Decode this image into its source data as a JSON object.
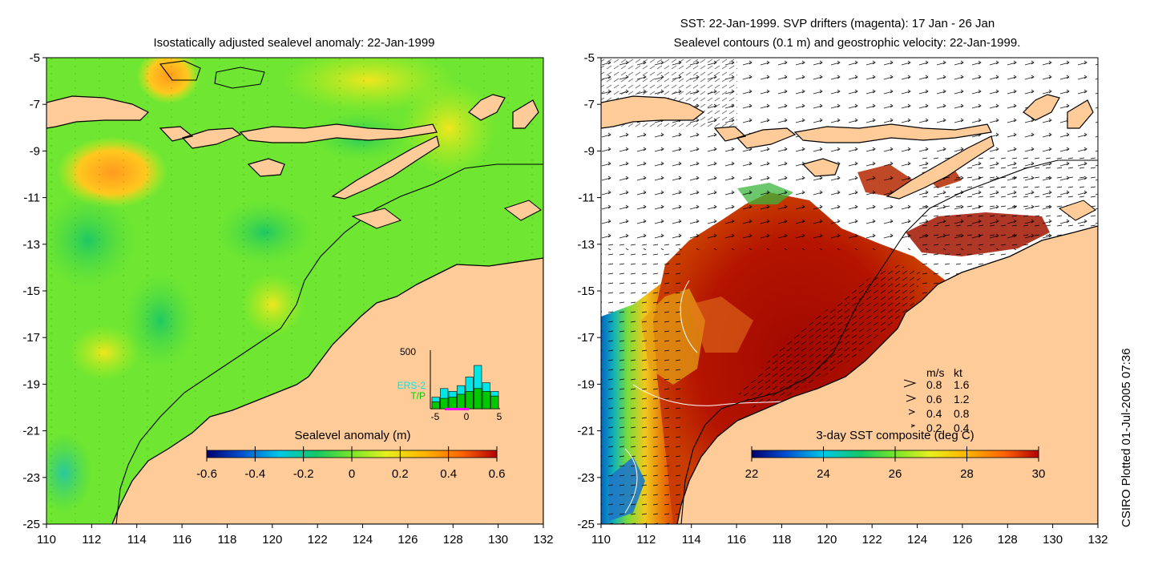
{
  "left_panel": {
    "title": "Isostatically adjusted sealevel anomaly: 22-Jan-1999",
    "colorbar": {
      "label": "Sealevel anomaly (m)",
      "ticks": [
        "-0.6",
        "-0.4",
        "-0.2",
        "0",
        "0.2",
        "0.4",
        "0.6"
      ],
      "colors": [
        "#00006e",
        "#0050d0",
        "#00c8e6",
        "#14c864",
        "#78e628",
        "#e6f01e",
        "#ffb400",
        "#ff6400",
        "#b40000"
      ]
    },
    "histogram": {
      "ymax_label": "500",
      "legend": [
        "ERS-2",
        "T/P"
      ],
      "xticks": [
        "-5",
        "0",
        "5"
      ],
      "bars_ers2": [
        0.2,
        0.35,
        0.3,
        0.4,
        0.55,
        0.75,
        0.45,
        0.3
      ],
      "bars_tp": [
        0.12,
        0.18,
        0.2,
        0.25,
        0.3,
        0.35,
        0.3,
        0.22
      ],
      "colors": {
        "ers2": "#00e6e6",
        "tp": "#00c800",
        "marker": "#ff00ff"
      }
    }
  },
  "right_panel": {
    "title_line1": "SST: 22-Jan-1999. SVP drifters (magenta): 17 Jan - 26 Jan",
    "title_line2": "Sealevel contours (0.1 m) and geostrophic velocity: 22-Jan-1999.",
    "colorbar": {
      "label": "3-day SST composite (deg C)",
      "ticks": [
        "22",
        "24",
        "26",
        "28",
        "30"
      ],
      "colors": [
        "#00006e",
        "#0050d0",
        "#00c8e6",
        "#14c864",
        "#78e628",
        "#e6f01e",
        "#ffb400",
        "#ff6400",
        "#b40000"
      ]
    },
    "velocity_legend": {
      "header_ms": "m/s",
      "header_kt": "kt",
      "rows": [
        {
          "ms": "0.8",
          "kt": "1.6"
        },
        {
          "ms": "0.6",
          "kt": "1.2"
        },
        {
          "ms": "0.4",
          "kt": "0.8"
        },
        {
          "ms": "0.2",
          "kt": "0.4"
        }
      ]
    }
  },
  "axes": {
    "x_ticks": [
      "110",
      "112",
      "114",
      "116",
      "118",
      "120",
      "122",
      "124",
      "126",
      "128",
      "130",
      "132"
    ],
    "y_ticks": [
      "-5",
      "-7",
      "-9",
      "-11",
      "-13",
      "-15",
      "-17",
      "-19",
      "-21",
      "-23",
      "-25"
    ]
  },
  "credit": "CSIRO Plotted 01-Jul-2005 07:36",
  "colors": {
    "land": "#ffcc99",
    "sst_warm": "#a00a00",
    "sla_green": "#6ee632"
  }
}
